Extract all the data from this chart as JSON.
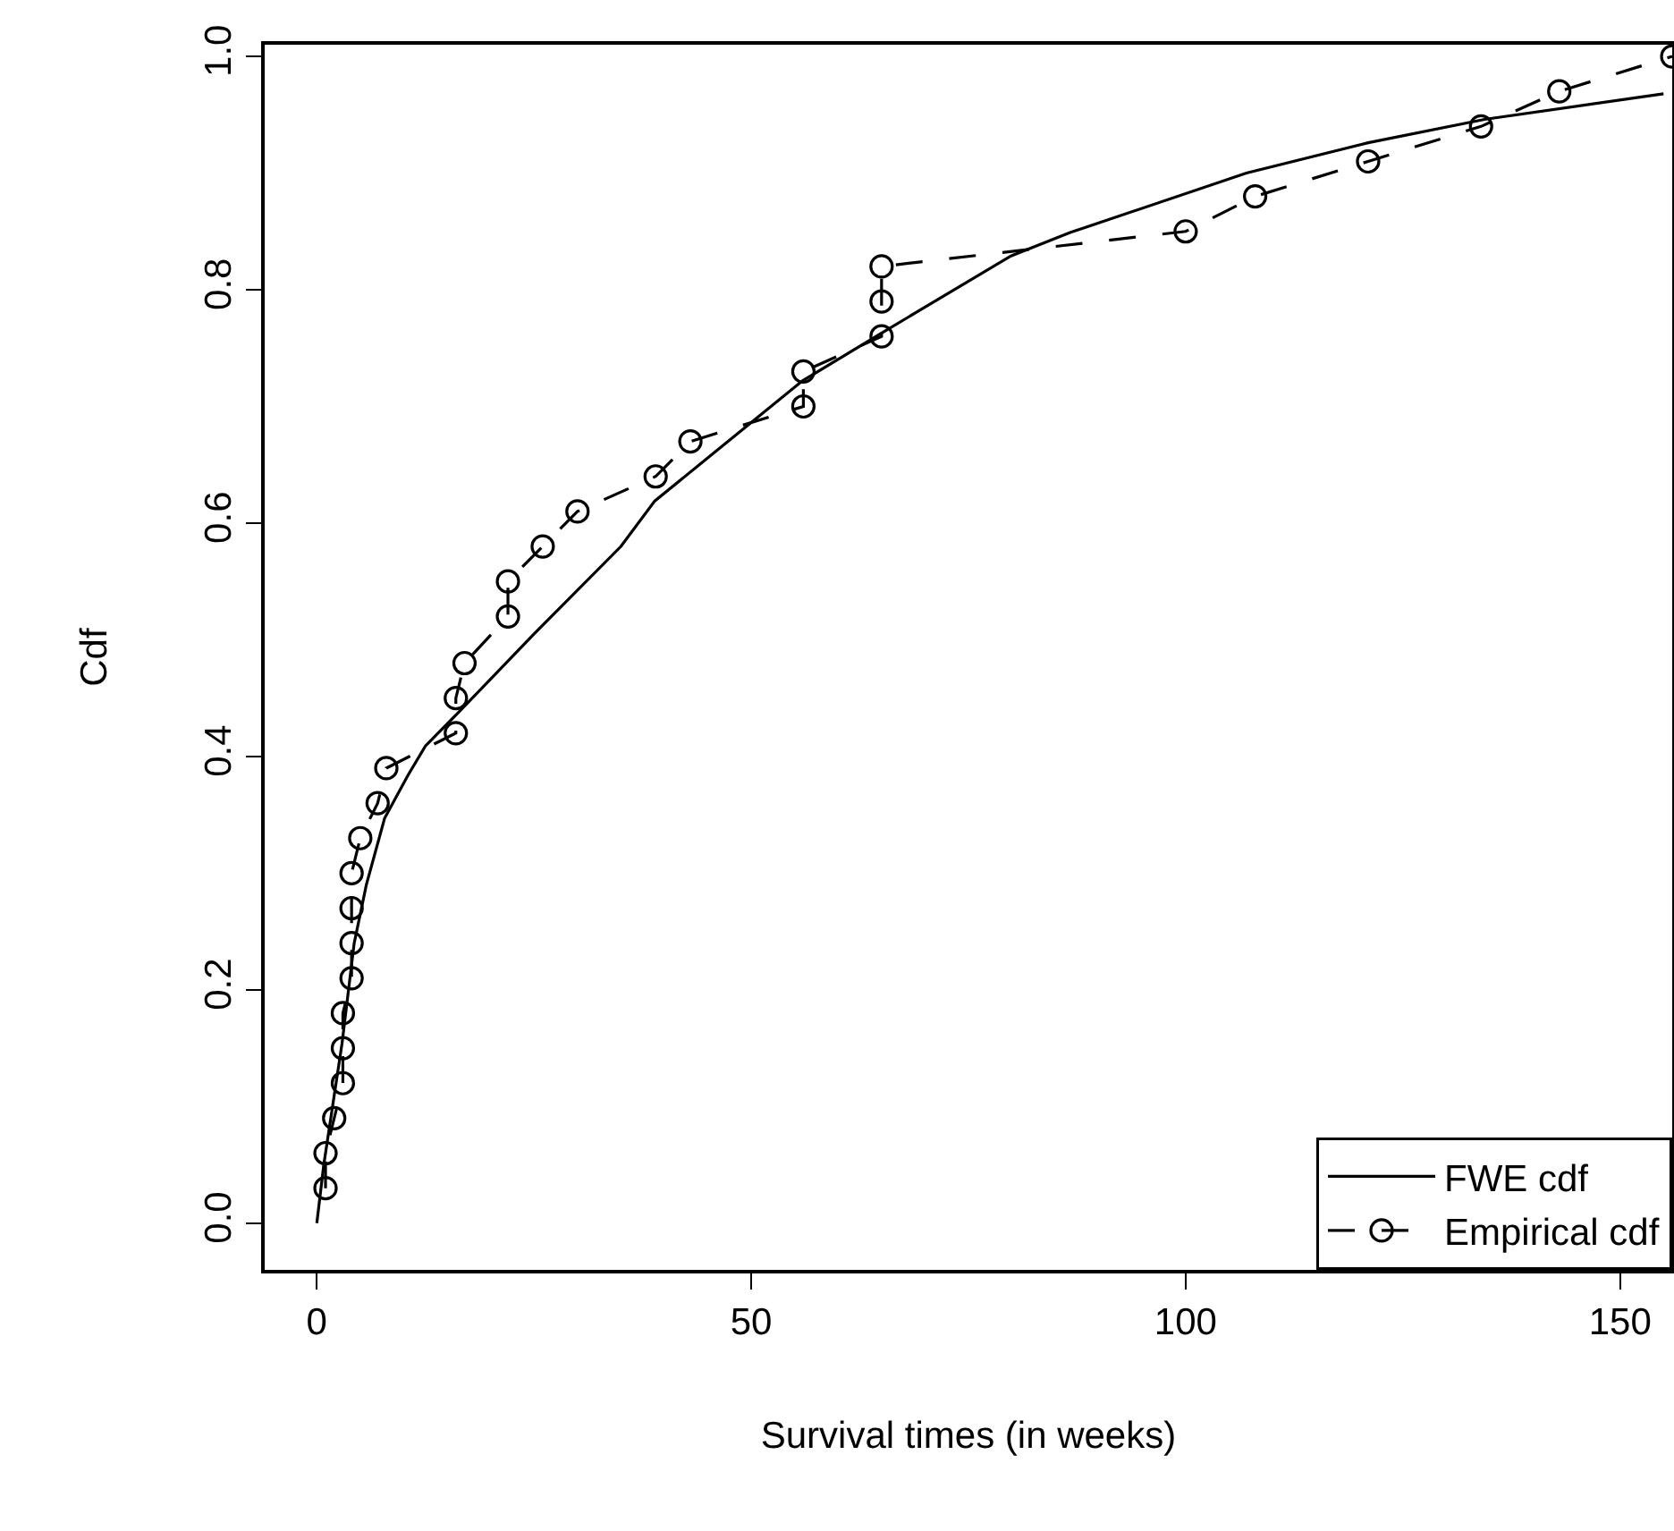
{
  "chart_data": {
    "type": "line",
    "xlabel": "Survival times (in weeks)",
    "ylabel": "Cdf",
    "xlim": [
      -6,
      156
    ],
    "ylim": [
      -0.04,
      1.01
    ],
    "xticks": [
      0,
      50,
      100,
      150
    ],
    "yticks": [
      {
        "value": 0,
        "label": "0.0"
      },
      {
        "value": 0.2,
        "label": "0.2"
      },
      {
        "value": 0.4,
        "label": "0.4"
      },
      {
        "value": 0.6,
        "label": "0.6"
      },
      {
        "value": 0.8,
        "label": "0.8"
      },
      {
        "value": 1,
        "label": "1.0"
      }
    ],
    "grid": false,
    "legend": "bottom right",
    "series": [
      {
        "name": "FWE cdf",
        "color": "#000000",
        "marker": "none",
        "line_style": "solid",
        "x": [
          0,
          0.8,
          2.9,
          4.3,
          5.7,
          7.8,
          10.5,
          12.5,
          16.6,
          25,
          35,
          38.9,
          55.9,
          64.8,
          79.9,
          86.7,
          107,
          121,
          134.4,
          155
        ],
        "values": [
          0,
          0.05,
          0.154,
          0.24,
          0.29,
          0.347,
          0.384,
          0.409,
          0.44,
          0.505,
          0.58,
          0.619,
          0.722,
          0.762,
          0.829,
          0.849,
          0.9,
          0.926,
          0.946,
          0.968
        ]
      },
      {
        "name": "Empirical cdf",
        "color": "#000000",
        "marker": "circle",
        "line_style": "dashed",
        "x": [
          1,
          1,
          2,
          3,
          3,
          3,
          4,
          4,
          4,
          4,
          5,
          7,
          8,
          16,
          16,
          17,
          22,
          22,
          26,
          30,
          39,
          43,
          56,
          56,
          65,
          65,
          65,
          100,
          108,
          121,
          134,
          143,
          156
        ],
        "values": [
          0.03,
          0.06,
          0.09,
          0.12,
          0.15,
          0.18,
          0.21,
          0.24,
          0.27,
          0.3,
          0.33,
          0.36,
          0.39,
          0.42,
          0.45,
          0.48,
          0.52,
          0.55,
          0.58,
          0.61,
          0.64,
          0.67,
          0.7,
          0.73,
          0.76,
          0.79,
          0.82,
          0.85,
          0.88,
          0.91,
          0.94,
          0.97,
          1.0
        ]
      }
    ]
  }
}
